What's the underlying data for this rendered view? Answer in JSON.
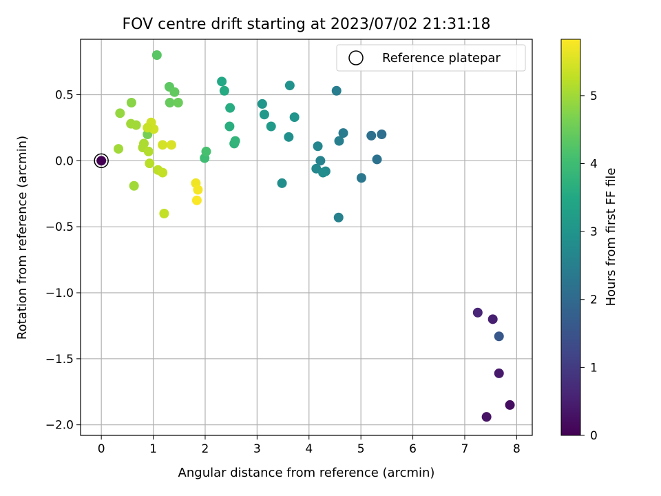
{
  "chart_data": {
    "type": "scatter",
    "title": "FOV centre drift starting at 2023/07/02 21:31:18",
    "xlabel": "Angular distance from reference (arcmin)",
    "ylabel": "Rotation from reference (arcmin)",
    "xlim": [
      -0.4,
      8.3
    ],
    "ylim": [
      -2.08,
      0.92
    ],
    "xticks": [
      0,
      1,
      2,
      3,
      4,
      5,
      6,
      7,
      8
    ],
    "xtick_labels": [
      "0",
      "1",
      "2",
      "3",
      "4",
      "5",
      "6",
      "7",
      "8"
    ],
    "yticks": [
      0.5,
      0.0,
      -0.5,
      -1.0,
      -1.5,
      -2.0
    ],
    "ytick_labels": [
      "0.5",
      "0.0",
      "−0.5",
      "−1.0",
      "−1.5",
      "−2.0"
    ],
    "grid": true,
    "legend": {
      "position": "upper right",
      "entries": [
        "Reference platepar"
      ]
    },
    "reference_point": {
      "x": 0.0,
      "y": 0.0
    },
    "colorbar": {
      "label": "Hours from first FF file",
      "colormap": "viridis",
      "range": [
        0,
        5.83
      ],
      "ticks": [
        0,
        1,
        2,
        3,
        4,
        5
      ],
      "tick_labels": [
        "0",
        "1",
        "2",
        "3",
        "4",
        "5"
      ]
    },
    "points": [
      {
        "x": 0.0,
        "y": 0.0,
        "h": 0.0
      },
      {
        "x": 7.87,
        "y": -1.85,
        "h": 0.2
      },
      {
        "x": 7.42,
        "y": -1.94,
        "h": 0.3
      },
      {
        "x": 7.66,
        "y": -1.61,
        "h": 0.4
      },
      {
        "x": 7.54,
        "y": -1.2,
        "h": 0.5
      },
      {
        "x": 7.25,
        "y": -1.15,
        "h": 0.6
      },
      {
        "x": 7.66,
        "y": -1.33,
        "h": 1.6
      },
      {
        "x": 5.4,
        "y": 0.2,
        "h": 2.1
      },
      {
        "x": 5.2,
        "y": 0.19,
        "h": 2.15
      },
      {
        "x": 5.31,
        "y": 0.01,
        "h": 2.2
      },
      {
        "x": 5.01,
        "y": -0.13,
        "h": 2.3
      },
      {
        "x": 4.66,
        "y": 0.21,
        "h": 2.4
      },
      {
        "x": 4.53,
        "y": 0.53,
        "h": 2.45
      },
      {
        "x": 4.58,
        "y": 0.15,
        "h": 2.5
      },
      {
        "x": 4.57,
        "y": -0.43,
        "h": 2.55
      },
      {
        "x": 4.22,
        "y": 0.0,
        "h": 2.6
      },
      {
        "x": 4.17,
        "y": 0.11,
        "h": 2.65
      },
      {
        "x": 4.14,
        "y": -0.06,
        "h": 2.7
      },
      {
        "x": 4.32,
        "y": -0.08,
        "h": 2.75
      },
      {
        "x": 4.27,
        "y": -0.09,
        "h": 2.8
      },
      {
        "x": 3.48,
        "y": -0.17,
        "h": 2.85
      },
      {
        "x": 3.61,
        "y": 0.18,
        "h": 2.9
      },
      {
        "x": 3.63,
        "y": 0.57,
        "h": 2.95
      },
      {
        "x": 3.72,
        "y": 0.33,
        "h": 3.0
      },
      {
        "x": 3.1,
        "y": 0.43,
        "h": 3.05
      },
      {
        "x": 3.14,
        "y": 0.35,
        "h": 3.1
      },
      {
        "x": 3.27,
        "y": 0.26,
        "h": 3.15
      },
      {
        "x": 2.32,
        "y": 0.6,
        "h": 3.5
      },
      {
        "x": 2.37,
        "y": 0.53,
        "h": 3.55
      },
      {
        "x": 2.48,
        "y": 0.4,
        "h": 3.6
      },
      {
        "x": 2.47,
        "y": 0.26,
        "h": 3.65
      },
      {
        "x": 2.56,
        "y": 0.13,
        "h": 3.75
      },
      {
        "x": 2.58,
        "y": 0.15,
        "h": 3.8
      },
      {
        "x": 1.99,
        "y": 0.02,
        "h": 4.0
      },
      {
        "x": 2.02,
        "y": 0.07,
        "h": 4.1
      },
      {
        "x": 1.07,
        "y": 0.8,
        "h": 4.3
      },
      {
        "x": 1.31,
        "y": 0.56,
        "h": 4.35
      },
      {
        "x": 1.41,
        "y": 0.52,
        "h": 4.4
      },
      {
        "x": 1.32,
        "y": 0.44,
        "h": 4.45
      },
      {
        "x": 1.48,
        "y": 0.44,
        "h": 4.5
      },
      {
        "x": 0.89,
        "y": 0.2,
        "h": 4.6
      },
      {
        "x": 0.58,
        "y": 0.44,
        "h": 4.8
      },
      {
        "x": 0.36,
        "y": 0.36,
        "h": 4.9
      },
      {
        "x": 0.57,
        "y": 0.28,
        "h": 5.0
      },
      {
        "x": 0.67,
        "y": 0.27,
        "h": 5.0
      },
      {
        "x": 0.63,
        "y": -0.19,
        "h": 5.0
      },
      {
        "x": 0.33,
        "y": 0.09,
        "h": 5.0
      },
      {
        "x": 0.82,
        "y": 0.13,
        "h": 5.1
      },
      {
        "x": 0.8,
        "y": 0.1,
        "h": 5.1
      },
      {
        "x": 0.91,
        "y": 0.07,
        "h": 5.15
      },
      {
        "x": 0.93,
        "y": -0.02,
        "h": 5.2
      },
      {
        "x": 1.09,
        "y": -0.07,
        "h": 5.25
      },
      {
        "x": 1.18,
        "y": -0.09,
        "h": 5.3
      },
      {
        "x": 1.21,
        "y": -0.4,
        "h": 5.3
      },
      {
        "x": 0.96,
        "y": 0.29,
        "h": 5.4
      },
      {
        "x": 1.01,
        "y": 0.24,
        "h": 5.4
      },
      {
        "x": 0.89,
        "y": 0.25,
        "h": 5.35
      },
      {
        "x": 1.18,
        "y": 0.12,
        "h": 5.45
      },
      {
        "x": 1.35,
        "y": 0.12,
        "h": 5.5
      },
      {
        "x": 1.82,
        "y": -0.17,
        "h": 5.7
      },
      {
        "x": 1.86,
        "y": -0.22,
        "h": 5.75
      },
      {
        "x": 1.84,
        "y": -0.3,
        "h": 5.8
      }
    ]
  }
}
